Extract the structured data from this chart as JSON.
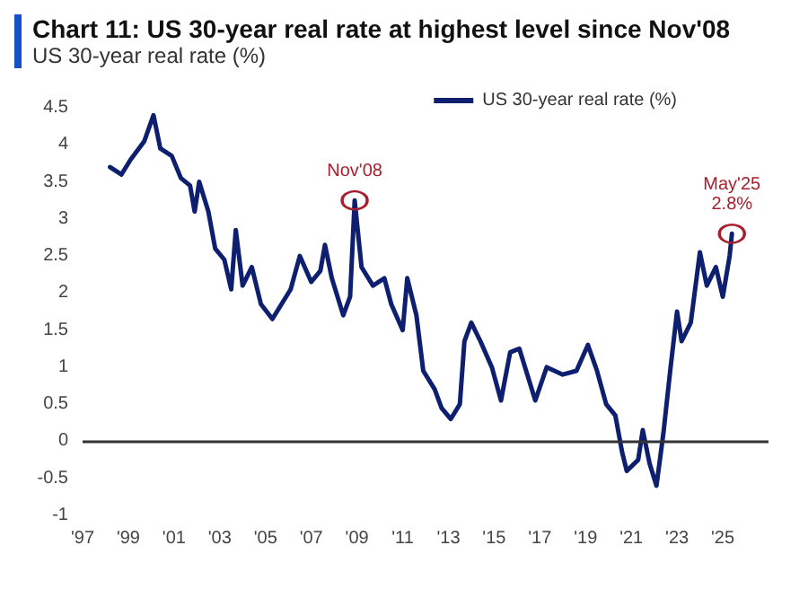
{
  "chart_data": {
    "type": "line",
    "title": "Chart 11: US 30-year real rate at highest level since Nov'08",
    "subtitle": "US 30-year real rate (%)",
    "series": [
      {
        "name": "US 30-year real rate (%)",
        "color": "#0d1f6e",
        "x": [
          1998.2,
          1998.7,
          1999.1,
          1999.7,
          2000.1,
          2000.4,
          2000.9,
          2001.3,
          2001.7,
          2001.9,
          2002.1,
          2002.5,
          2002.8,
          2003.2,
          2003.5,
          2003.7,
          2004.0,
          2004.4,
          2004.8,
          2005.3,
          2005.7,
          2006.1,
          2006.5,
          2007.0,
          2007.4,
          2007.6,
          2007.9,
          2008.4,
          2008.7,
          2008.9,
          2009.2,
          2009.7,
          2010.2,
          2010.5,
          2011.0,
          2011.2,
          2011.6,
          2011.9,
          2012.4,
          2012.7,
          2013.1,
          2013.5,
          2013.7,
          2014.0,
          2014.4,
          2014.9,
          2015.3,
          2015.7,
          2016.1,
          2016.4,
          2016.8,
          2017.3,
          2018.0,
          2018.6,
          2019.1,
          2019.5,
          2019.9,
          2020.3,
          2020.6,
          2020.8,
          2021.3,
          2021.5,
          2021.8,
          2022.1,
          2022.4,
          2022.7,
          2023.0,
          2023.2,
          2023.6,
          2024.0,
          2024.3,
          2024.7,
          2025.0,
          2025.3,
          2025.4
        ],
        "values": [
          3.7,
          3.6,
          3.8,
          4.05,
          4.4,
          3.95,
          3.85,
          3.55,
          3.45,
          3.1,
          3.5,
          3.1,
          2.6,
          2.45,
          2.05,
          2.85,
          2.1,
          2.35,
          1.85,
          1.65,
          1.85,
          2.05,
          2.5,
          2.15,
          2.3,
          2.65,
          2.2,
          1.7,
          1.95,
          3.25,
          2.35,
          2.1,
          2.2,
          1.85,
          1.5,
          2.2,
          1.7,
          0.95,
          0.7,
          0.45,
          0.3,
          0.5,
          1.35,
          1.6,
          1.35,
          1.0,
          0.55,
          1.2,
          1.25,
          0.95,
          0.55,
          1.0,
          0.9,
          0.95,
          1.3,
          0.95,
          0.5,
          0.35,
          -0.15,
          -0.4,
          -0.25,
          0.15,
          -0.3,
          -0.6,
          0.1,
          0.95,
          1.75,
          1.35,
          1.6,
          2.55,
          2.1,
          2.35,
          1.95,
          2.5,
          2.8
        ]
      }
    ],
    "annotations": [
      {
        "text": "Nov'08",
        "x": 2008.9,
        "y": 3.25
      },
      {
        "text": "May'25\n2.8%",
        "x": 2025.4,
        "y": 2.8
      }
    ],
    "xlim": [
      1997,
      2027
    ],
    "xticks": [
      {
        "value": 1997,
        "label": "'97"
      },
      {
        "value": 1999,
        "label": "'99"
      },
      {
        "value": 2001,
        "label": "'01"
      },
      {
        "value": 2003,
        "label": "'03"
      },
      {
        "value": 2005,
        "label": "'05"
      },
      {
        "value": 2007,
        "label": "'07"
      },
      {
        "value": 2009,
        "label": "'09"
      },
      {
        "value": 2011,
        "label": "'11"
      },
      {
        "value": 2013,
        "label": "'13"
      },
      {
        "value": 2015,
        "label": "'15"
      },
      {
        "value": 2017,
        "label": "'17"
      },
      {
        "value": 2019,
        "label": "'19"
      },
      {
        "value": 2021,
        "label": "'21"
      },
      {
        "value": 2023,
        "label": "'23"
      },
      {
        "value": 2025,
        "label": "'25"
      }
    ],
    "ylim": [
      -1,
      4.5
    ],
    "yticks": [
      -1,
      -0.5,
      0,
      0.5,
      1,
      1.5,
      2,
      2.5,
      3,
      3.5,
      4,
      4.5
    ],
    "ref_lines": [
      {
        "axis": "y",
        "value": 0,
        "color": "#333333"
      }
    ],
    "grid": false,
    "legend": "top right",
    "marker": "none",
    "line_style": "solid"
  }
}
